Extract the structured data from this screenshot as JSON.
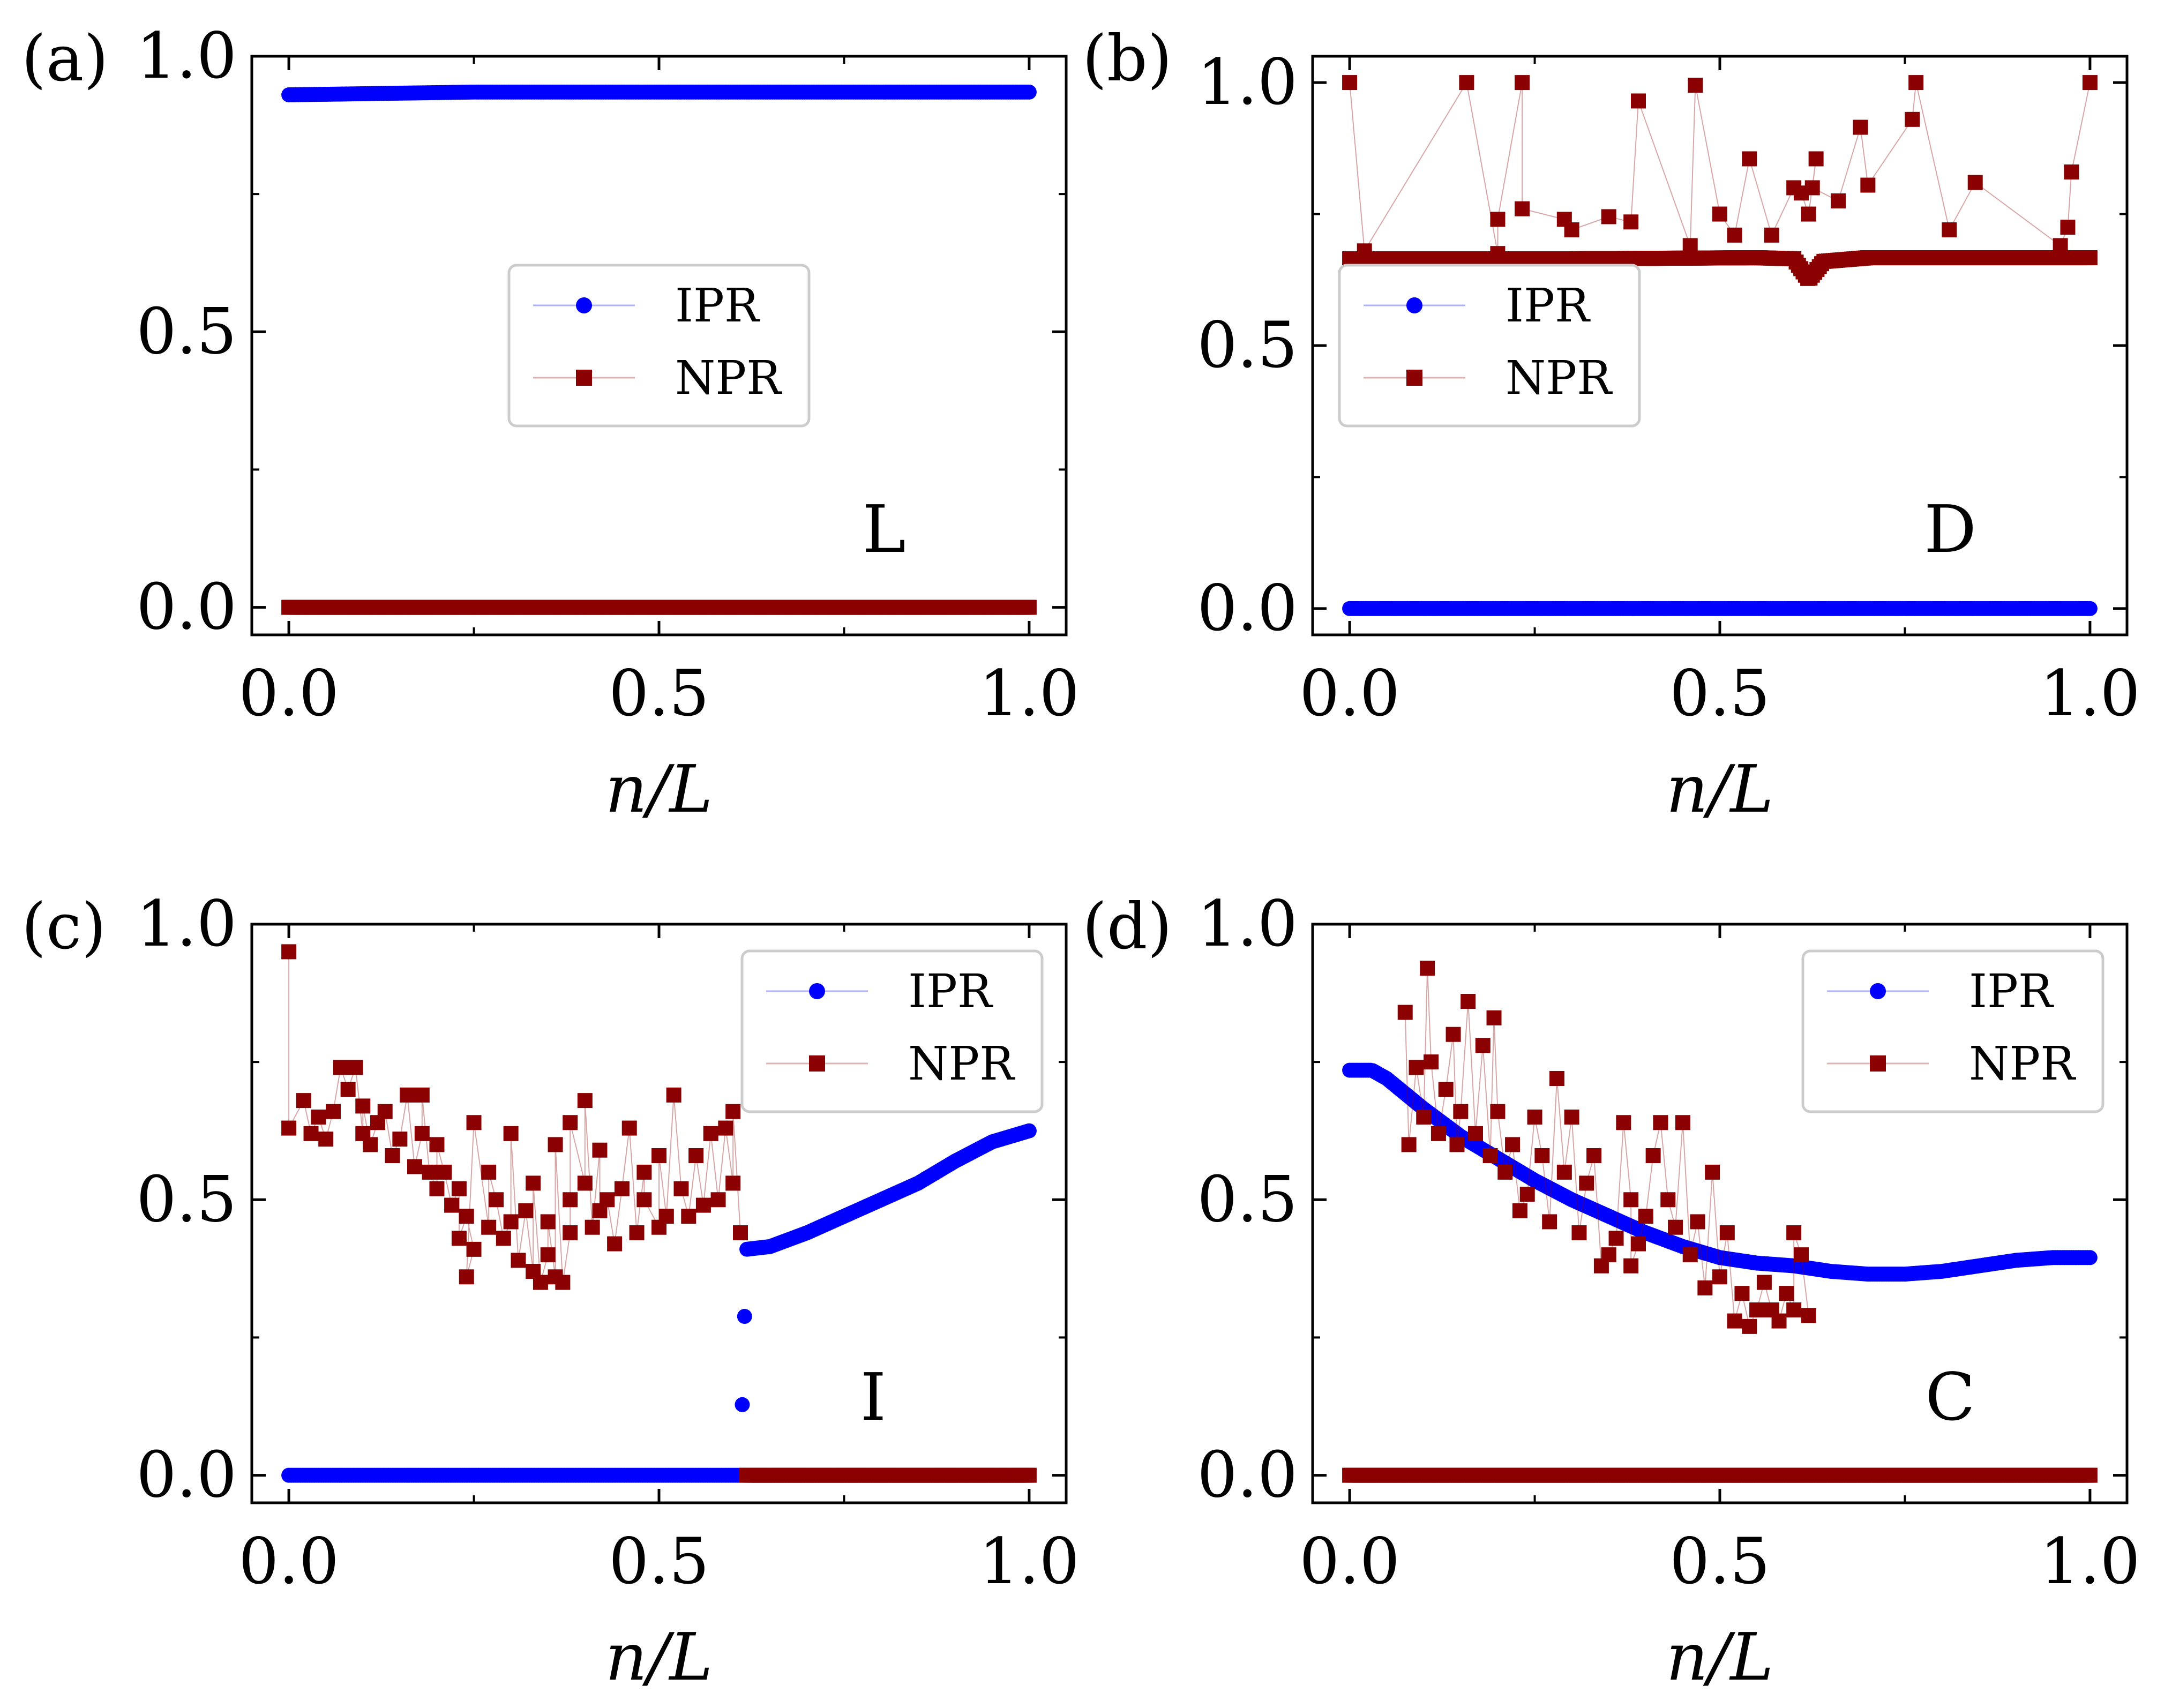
{
  "colors": {
    "ipr": "#0000ff",
    "npr": "#8b0000",
    "frame": "#000000",
    "legend_edge": "#cccccc"
  },
  "legend_labels": [
    "IPR",
    "NPR"
  ],
  "chart_data": [
    {
      "type": "scatter",
      "panel": "(a)",
      "phase": "L",
      "xlabel": "n/L",
      "ylabel": "",
      "xlim": [
        -0.05,
        1.05
      ],
      "ylim": [
        -0.05,
        1.0
      ],
      "xticks": [
        "0.0",
        "0.5",
        "1.0"
      ],
      "yticks": [
        "0.0",
        "0.5",
        "1.0"
      ],
      "legend_position": "center",
      "series": [
        {
          "name": "IPR",
          "marker": "circle",
          "kind": "curve",
          "points": [
            [
              0,
              0.93
            ],
            [
              0.25,
              0.935
            ],
            [
              0.5,
              0.935
            ],
            [
              0.75,
              0.935
            ],
            [
              1.0,
              0.935
            ]
          ]
        },
        {
          "name": "NPR",
          "marker": "square",
          "kind": "curve",
          "points": [
            [
              0,
              0.0
            ],
            [
              1.0,
              0.0
            ]
          ]
        }
      ]
    },
    {
      "type": "scatter",
      "panel": "(b)",
      "phase": "D",
      "xlabel": "n/L",
      "ylabel": "",
      "xlim": [
        -0.05,
        1.05
      ],
      "ylim": [
        -0.05,
        1.05
      ],
      "xticks": [
        "0.0",
        "0.5",
        "1.0"
      ],
      "yticks": [
        "0.0",
        "0.5",
        "1.0"
      ],
      "legend_position": "center-left",
      "series": [
        {
          "name": "IPR",
          "marker": "circle",
          "kind": "curve",
          "points": [
            [
              0,
              0.0
            ],
            [
              1.0,
              0.0
            ]
          ]
        },
        {
          "name": "NPR",
          "marker": "square",
          "kind": "curve",
          "points": [
            [
              0,
              0.665
            ],
            [
              0.3,
              0.665
            ],
            [
              0.55,
              0.667
            ],
            [
              0.6,
              0.665
            ],
            [
              0.62,
              0.625
            ],
            [
              0.64,
              0.66
            ],
            [
              0.7,
              0.667
            ],
            [
              1.0,
              0.667
            ]
          ]
        },
        {
          "name": "NPR",
          "marker": "square",
          "kind": "outliers",
          "points": [
            [
              0.0,
              1.0
            ],
            [
              0.02,
              0.68
            ],
            [
              0.158,
              1.0
            ],
            [
              0.2,
              0.675
            ],
            [
              0.2,
              0.74
            ],
            [
              0.233,
              1.0
            ],
            [
              0.233,
              0.76
            ],
            [
              0.29,
              0.74
            ],
            [
              0.3,
              0.72
            ],
            [
              0.35,
              0.745
            ],
            [
              0.38,
              0.735
            ],
            [
              0.39,
              0.965
            ],
            [
              0.46,
              0.69
            ],
            [
              0.467,
              0.995
            ],
            [
              0.5,
              0.75
            ],
            [
              0.52,
              0.71
            ],
            [
              0.54,
              0.855
            ],
            [
              0.57,
              0.71
            ],
            [
              0.6,
              0.8
            ],
            [
              0.61,
              0.79
            ],
            [
              0.62,
              0.75
            ],
            [
              0.63,
              0.855
            ],
            [
              0.625,
              0.8
            ],
            [
              0.66,
              0.775
            ],
            [
              0.69,
              0.915
            ],
            [
              0.7,
              0.805
            ],
            [
              0.76,
              0.93
            ],
            [
              0.765,
              1.0
            ],
            [
              0.81,
              0.72
            ],
            [
              0.845,
              0.81
            ],
            [
              0.96,
              0.69
            ],
            [
              0.97,
              0.725
            ],
            [
              0.975,
              0.83
            ],
            [
              1.0,
              1.0
            ]
          ]
        }
      ]
    },
    {
      "type": "scatter",
      "panel": "(c)",
      "phase": "I",
      "xlabel": "n/L",
      "ylabel": "",
      "xlim": [
        -0.05,
        1.05
      ],
      "ylim": [
        -0.05,
        1.0
      ],
      "xticks": [
        "0.0",
        "0.5",
        "1.0"
      ],
      "yticks": [
        "0.0",
        "0.5",
        "1.0"
      ],
      "legend_position": "top-right",
      "series": [
        {
          "name": "IPR",
          "marker": "circle",
          "kind": "curve",
          "points": [
            [
              0,
              0.0
            ],
            [
              0.61,
              0.0
            ],
            [
              0.618,
              0.41
            ],
            [
              0.65,
              0.415
            ],
            [
              0.7,
              0.44
            ],
            [
              0.75,
              0.47
            ],
            [
              0.8,
              0.5
            ],
            [
              0.85,
              0.53
            ],
            [
              0.9,
              0.57
            ],
            [
              0.95,
              0.605
            ],
            [
              1.0,
              0.625
            ]
          ]
        },
        {
          "name": "NPR",
          "marker": "square",
          "kind": "curve",
          "points": [
            [
              0.618,
              0.0
            ],
            [
              1.0,
              0.0
            ]
          ]
        },
        {
          "name": "NPR",
          "marker": "square",
          "kind": "scatter",
          "points": [
            [
              0.0,
              0.95
            ],
            [
              0.0,
              0.63
            ],
            [
              0.02,
              0.68
            ],
            [
              0.03,
              0.62
            ],
            [
              0.04,
              0.65
            ],
            [
              0.05,
              0.61
            ],
            [
              0.06,
              0.66
            ],
            [
              0.07,
              0.74
            ],
            [
              0.08,
              0.7
            ],
            [
              0.09,
              0.74
            ],
            [
              0.1,
              0.62
            ],
            [
              0.1,
              0.67
            ],
            [
              0.11,
              0.6
            ],
            [
              0.12,
              0.64
            ],
            [
              0.13,
              0.66
            ],
            [
              0.14,
              0.58
            ],
            [
              0.15,
              0.61
            ],
            [
              0.16,
              0.69
            ],
            [
              0.17,
              0.56
            ],
            [
              0.18,
              0.62
            ],
            [
              0.18,
              0.69
            ],
            [
              0.19,
              0.55
            ],
            [
              0.2,
              0.52
            ],
            [
              0.2,
              0.6
            ],
            [
              0.21,
              0.55
            ],
            [
              0.22,
              0.49
            ],
            [
              0.23,
              0.52
            ],
            [
              0.23,
              0.43
            ],
            [
              0.24,
              0.47
            ],
            [
              0.25,
              0.41
            ],
            [
              0.24,
              0.36
            ],
            [
              0.25,
              0.64
            ],
            [
              0.27,
              0.45
            ],
            [
              0.27,
              0.55
            ],
            [
              0.28,
              0.5
            ],
            [
              0.29,
              0.43
            ],
            [
              0.3,
              0.46
            ],
            [
              0.3,
              0.62
            ],
            [
              0.31,
              0.39
            ],
            [
              0.32,
              0.48
            ],
            [
              0.33,
              0.37
            ],
            [
              0.33,
              0.53
            ],
            [
              0.34,
              0.35
            ],
            [
              0.35,
              0.4
            ],
            [
              0.35,
              0.46
            ],
            [
              0.36,
              0.36
            ],
            [
              0.36,
              0.6
            ],
            [
              0.37,
              0.35
            ],
            [
              0.38,
              0.44
            ],
            [
              0.38,
              0.5
            ],
            [
              0.38,
              0.64
            ],
            [
              0.4,
              0.53
            ],
            [
              0.4,
              0.68
            ],
            [
              0.41,
              0.45
            ],
            [
              0.42,
              0.59
            ],
            [
              0.42,
              0.48
            ],
            [
              0.43,
              0.5
            ],
            [
              0.44,
              0.42
            ],
            [
              0.45,
              0.52
            ],
            [
              0.46,
              0.63
            ],
            [
              0.47,
              0.44
            ],
            [
              0.48,
              0.55
            ],
            [
              0.48,
              0.5
            ],
            [
              0.5,
              0.45
            ],
            [
              0.5,
              0.58
            ],
            [
              0.51,
              0.47
            ],
            [
              0.52,
              0.69
            ],
            [
              0.53,
              0.52
            ],
            [
              0.54,
              0.47
            ],
            [
              0.55,
              0.58
            ],
            [
              0.56,
              0.49
            ],
            [
              0.57,
              0.62
            ],
            [
              0.58,
              0.5
            ],
            [
              0.59,
              0.63
            ],
            [
              0.6,
              0.53
            ],
            [
              0.6,
              0.66
            ],
            [
              0.61,
              0.44
            ]
          ]
        }
      ]
    },
    {
      "type": "scatter",
      "panel": "(d)",
      "phase": "C",
      "xlabel": "n/L",
      "ylabel": "",
      "xlim": [
        -0.05,
        1.05
      ],
      "ylim": [
        -0.05,
        1.0
      ],
      "xticks": [
        "0.0",
        "0.5",
        "1.0"
      ],
      "yticks": [
        "0.0",
        "0.5",
        "1.0"
      ],
      "legend_position": "top-right",
      "series": [
        {
          "name": "IPR",
          "marker": "circle",
          "kind": "curve",
          "points": [
            [
              0,
              0.735
            ],
            [
              0.03,
              0.735
            ],
            [
              0.05,
              0.72
            ],
            [
              0.1,
              0.665
            ],
            [
              0.15,
              0.615
            ],
            [
              0.2,
              0.575
            ],
            [
              0.25,
              0.535
            ],
            [
              0.3,
              0.5
            ],
            [
              0.35,
              0.47
            ],
            [
              0.4,
              0.44
            ],
            [
              0.45,
              0.415
            ],
            [
              0.5,
              0.395
            ],
            [
              0.55,
              0.385
            ],
            [
              0.6,
              0.38
            ],
            [
              0.65,
              0.37
            ],
            [
              0.7,
              0.365
            ],
            [
              0.75,
              0.365
            ],
            [
              0.8,
              0.37
            ],
            [
              0.85,
              0.38
            ],
            [
              0.9,
              0.39
            ],
            [
              0.95,
              0.395
            ],
            [
              1.0,
              0.395
            ]
          ]
        },
        {
          "name": "NPR",
          "marker": "square",
          "kind": "curve",
          "points": [
            [
              0,
              0.0
            ],
            [
              1.0,
              0.0
            ]
          ]
        },
        {
          "name": "NPR",
          "marker": "square",
          "kind": "scatter",
          "points": [
            [
              0.075,
              0.84
            ],
            [
              0.08,
              0.6
            ],
            [
              0.09,
              0.74
            ],
            [
              0.1,
              0.65
            ],
            [
              0.105,
              0.92
            ],
            [
              0.11,
              0.75
            ],
            [
              0.12,
              0.62
            ],
            [
              0.13,
              0.7
            ],
            [
              0.14,
              0.8
            ],
            [
              0.145,
              0.6
            ],
            [
              0.15,
              0.66
            ],
            [
              0.16,
              0.86
            ],
            [
              0.17,
              0.62
            ],
            [
              0.18,
              0.78
            ],
            [
              0.19,
              0.58
            ],
            [
              0.195,
              0.83
            ],
            [
              0.2,
              0.66
            ],
            [
              0.21,
              0.55
            ],
            [
              0.22,
              0.6
            ],
            [
              0.23,
              0.48
            ],
            [
              0.24,
              0.51
            ],
            [
              0.25,
              0.65
            ],
            [
              0.26,
              0.58
            ],
            [
              0.27,
              0.46
            ],
            [
              0.28,
              0.72
            ],
            [
              0.29,
              0.55
            ],
            [
              0.3,
              0.65
            ],
            [
              0.31,
              0.44
            ],
            [
              0.32,
              0.53
            ],
            [
              0.33,
              0.58
            ],
            [
              0.34,
              0.38
            ],
            [
              0.35,
              0.4
            ],
            [
              0.36,
              0.43
            ],
            [
              0.37,
              0.64
            ],
            [
              0.38,
              0.5
            ],
            [
              0.38,
              0.38
            ],
            [
              0.39,
              0.42
            ],
            [
              0.4,
              0.47
            ],
            [
              0.41,
              0.58
            ],
            [
              0.42,
              0.64
            ],
            [
              0.43,
              0.5
            ],
            [
              0.44,
              0.45
            ],
            [
              0.45,
              0.64
            ],
            [
              0.46,
              0.4
            ],
            [
              0.47,
              0.46
            ],
            [
              0.48,
              0.34
            ],
            [
              0.49,
              0.55
            ],
            [
              0.5,
              0.36
            ],
            [
              0.51,
              0.44
            ],
            [
              0.52,
              0.28
            ],
            [
              0.53,
              0.33
            ],
            [
              0.54,
              0.27
            ],
            [
              0.55,
              0.3
            ],
            [
              0.56,
              0.35
            ],
            [
              0.57,
              0.3
            ],
            [
              0.58,
              0.28
            ],
            [
              0.59,
              0.33
            ],
            [
              0.6,
              0.3
            ],
            [
              0.6,
              0.44
            ],
            [
              0.61,
              0.4
            ],
            [
              0.62,
              0.29
            ]
          ]
        }
      ]
    }
  ]
}
